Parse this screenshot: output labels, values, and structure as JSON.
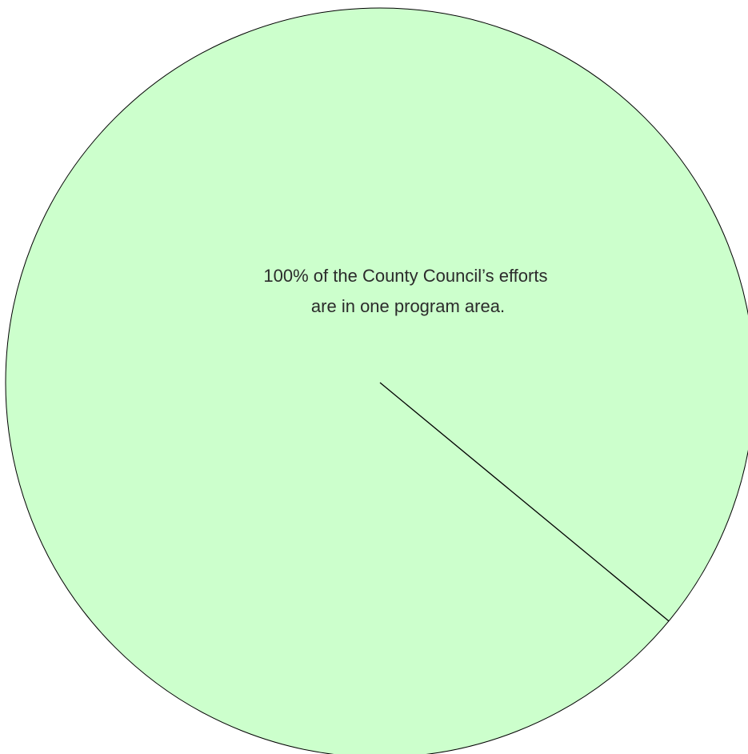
{
  "chart_data": {
    "type": "pie",
    "slices": [
      {
        "value": 100,
        "color": "#ccffcc"
      }
    ],
    "annotation_lines": [
      "100% of the County Council’s efforts",
      "are in one program area."
    ],
    "stroke_color": "#000000"
  }
}
